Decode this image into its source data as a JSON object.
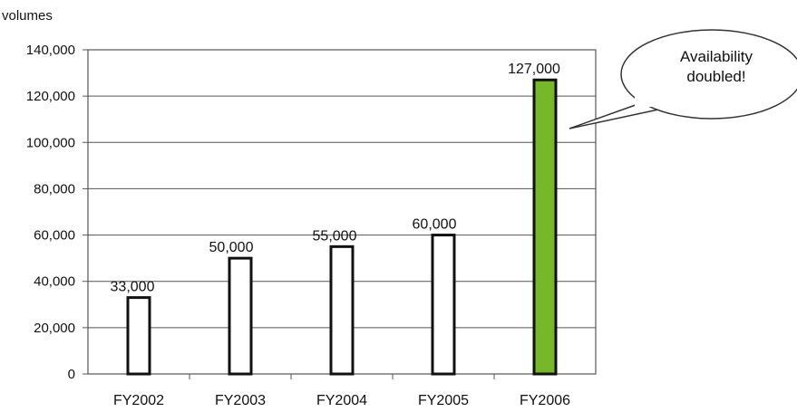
{
  "chart_data": {
    "type": "bar",
    "ylabel": "volumes",
    "categories": [
      "FY2002",
      "FY2003",
      "FY2004",
      "FY2005",
      "FY2006"
    ],
    "values": [
      33000,
      50000,
      55000,
      60000,
      127000
    ],
    "value_labels": [
      "33,000",
      "50,000",
      "55,000",
      "60,000",
      "127,000"
    ],
    "ylim": [
      0,
      140000
    ],
    "yticks": [
      0,
      20000,
      40000,
      60000,
      80000,
      100000,
      120000,
      140000
    ],
    "ytick_labels": [
      "0",
      "20,000",
      "40,000",
      "60,000",
      "80,000",
      "100,000",
      "120,000",
      "140,000"
    ],
    "grid": true,
    "colors": {
      "default_bar": "#ffffff",
      "highlight_bar": "#76b82a",
      "bar_edge": "#111111",
      "grid": "#555555"
    },
    "highlight_index": 4,
    "annotation": {
      "lines": [
        "Availability",
        "doubled!"
      ],
      "points_to": "FY2006"
    }
  }
}
